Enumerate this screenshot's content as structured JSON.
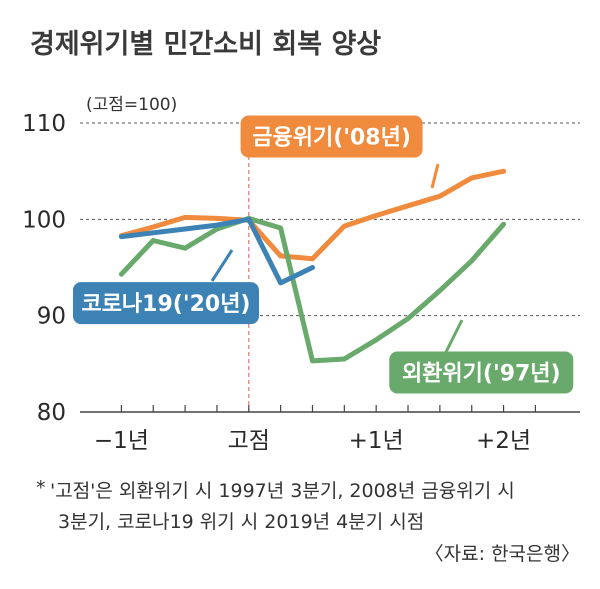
{
  "title": "경제위기별 민간소비 회복 양상",
  "unit": "(고점=100)",
  "chart_data": {
    "type": "line",
    "x_ticks": [
      "−1년",
      "고점",
      "+1년",
      "+2년"
    ],
    "x_tick_positions": [
      -4,
      0,
      4,
      8
    ],
    "y_ticks": [
      "110",
      "100",
      "90",
      "80"
    ],
    "y_tick_values": [
      110,
      100,
      90,
      80
    ],
    "ylim": [
      80,
      110
    ],
    "xlim": [
      -5.3,
      10.4
    ],
    "series": [
      {
        "name": "금융위기('08년)",
        "color": "#F08A3C",
        "label_x": 2.6,
        "label_y": 108.6,
        "x": [
          -4,
          -3,
          -2,
          -1,
          0,
          1,
          2,
          3,
          4,
          5,
          6,
          7,
          8
        ],
        "values": [
          98.3,
          99.2,
          100.2,
          100.1,
          99.9,
          96.2,
          95.9,
          99.3,
          100.4,
          101.4,
          102.4,
          104.3,
          105.0
        ]
      },
      {
        "name": "외환위기('97년)",
        "color": "#69AA6C",
        "label_x": 7.3,
        "label_y": 84.1,
        "x": [
          -4,
          -3,
          -2,
          -1,
          0,
          1,
          2,
          3,
          4,
          5,
          6,
          7,
          8
        ],
        "values": [
          94.3,
          97.8,
          97.0,
          99.0,
          100.1,
          99.1,
          85.3,
          85.5,
          87.5,
          89.7,
          92.6,
          95.7,
          99.5
        ]
      },
      {
        "name": "코로나19('20년)",
        "color": "#3C82B5",
        "label_x": -2.6,
        "label_y": 91.3,
        "x": [
          -4,
          -3,
          -2,
          -1,
          0,
          1,
          2
        ],
        "values": [
          98.2,
          98.6,
          99.0,
          99.4,
          100.0,
          93.4,
          95.0
        ]
      }
    ],
    "peak_marker_x": 0,
    "grid": true
  },
  "note_mark": "*",
  "note_line1": "'고점'은 외환위기 시 1997년 3분기, 2008년 금융위기 시",
  "note_line2": "3분기, 코로나19 위기 시 2019년 4분기 시점",
  "source": "〈자료: 한국은행〉"
}
